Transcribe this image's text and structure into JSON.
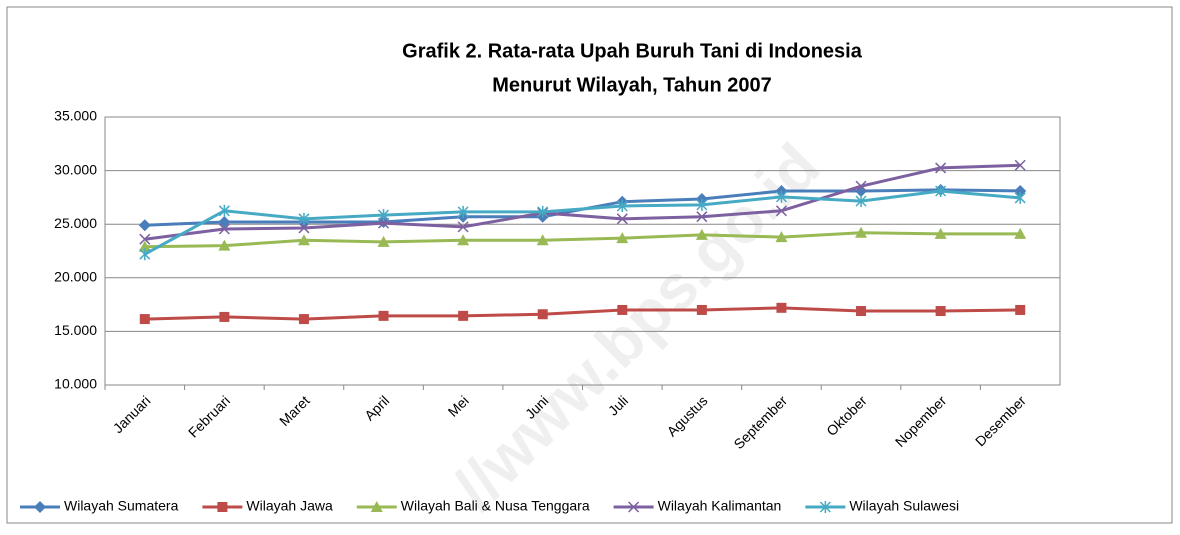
{
  "chart_data": {
    "type": "line",
    "title": [
      "Grafik 2. Rata-rata Upah Buruh Tani di Indonesia",
      "Menurut Wilayah, Tahun 2007"
    ],
    "watermark": "//www.bps.go.id",
    "categories": [
      "Januari",
      "Februari",
      "Maret",
      "April",
      "Mei",
      "Juni",
      "Juli",
      "Agustus",
      "September",
      "Oktober",
      "Nopember",
      "Desember"
    ],
    "series": [
      {
        "name": "Wilayah Sumatera",
        "color": "#4a7ebb",
        "marker": "diamond",
        "values": [
          24900,
          25200,
          25200,
          25200,
          25700,
          25700,
          27100,
          27350,
          28100,
          28100,
          28200,
          28100
        ]
      },
      {
        "name": "Wilayah Jawa",
        "color": "#be4b48",
        "marker": "square",
        "values": [
          16150,
          16350,
          16150,
          16450,
          16450,
          16600,
          17000,
          17000,
          17200,
          16900,
          16900,
          17000
        ]
      },
      {
        "name": "Wilayah Bali & Nusa Tenggara",
        "color": "#98b954",
        "marker": "triangle",
        "values": [
          22900,
          23000,
          23500,
          23350,
          23500,
          23500,
          23700,
          24000,
          23800,
          24200,
          24100,
          24100
        ]
      },
      {
        "name": "Wilayah Kalimantan",
        "color": "#7d60a0",
        "marker": "x",
        "values": [
          23600,
          24550,
          24650,
          25100,
          24750,
          26050,
          25500,
          25700,
          26250,
          28550,
          30250,
          30500
        ]
      },
      {
        "name": "Wilayah Sulawesi",
        "color": "#46aac5",
        "marker": "star",
        "values": [
          22200,
          26250,
          25500,
          25850,
          26150,
          26150,
          26700,
          26800,
          27550,
          27150,
          28100,
          27450
        ]
      }
    ],
    "ylim": [
      10000,
      35000
    ],
    "yticks": [
      {
        "value": 10000,
        "label": "10.000"
      },
      {
        "value": 15000,
        "label": "15.000"
      },
      {
        "value": 20000,
        "label": "20.000"
      },
      {
        "value": 25000,
        "label": "25.000"
      },
      {
        "value": 30000,
        "label": "30.000"
      },
      {
        "value": 35000,
        "label": "35.000"
      }
    ],
    "grid": true,
    "legend": "bottom"
  }
}
